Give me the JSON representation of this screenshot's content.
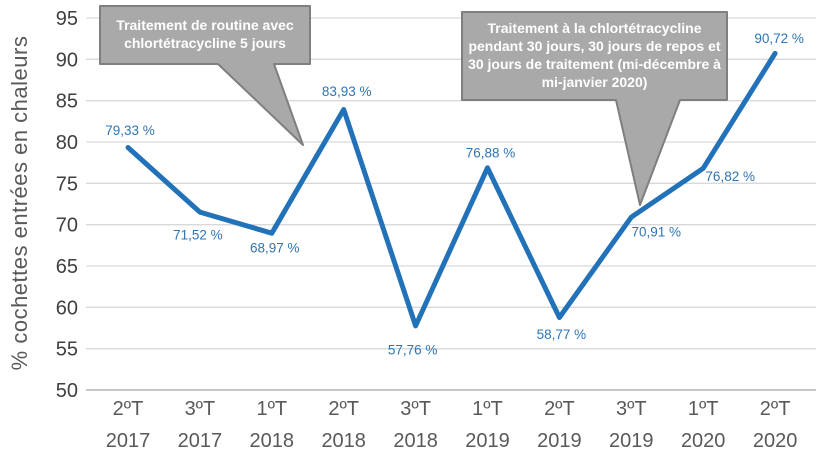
{
  "chart_data": {
    "type": "line",
    "title": "",
    "xlabel": "",
    "ylabel": "% cochettes entrées en chaleurs",
    "ylim": [
      50,
      95
    ],
    "yticks": [
      50,
      55,
      60,
      65,
      70,
      75,
      80,
      85,
      90,
      95
    ],
    "grid": true,
    "legend": "none",
    "categories": [
      {
        "quarter": "2ºT",
        "year": "2017"
      },
      {
        "quarter": "3ºT",
        "year": "2017"
      },
      {
        "quarter": "1ºT",
        "year": "2018"
      },
      {
        "quarter": "2ºT",
        "year": "2018"
      },
      {
        "quarter": "3ºT",
        "year": "2018"
      },
      {
        "quarter": "1ºT",
        "year": "2019"
      },
      {
        "quarter": "2ºT",
        "year": "2019"
      },
      {
        "quarter": "3ºT",
        "year": "2019"
      },
      {
        "quarter": "1ºT",
        "year": "2020"
      },
      {
        "quarter": "2ºT",
        "year": "2020"
      }
    ],
    "series": [
      {
        "name": "% cochettes entrées en chaleurs",
        "values": [
          79.33,
          71.52,
          68.97,
          83.93,
          57.76,
          76.88,
          58.77,
          70.91,
          76.82,
          90.72
        ],
        "point_labels": [
          "79,33 %",
          "71,52 %",
          "68,97 %",
          "83,93 %",
          "57,76 %",
          "76,88 %",
          "58,77 %",
          "70,91 %",
          "76,82 %",
          "90,72 %"
        ]
      }
    ],
    "annotations": [
      {
        "text": "Traitement de routine avec chlortétracycline 5 jours",
        "points_to": "entre 1ºT 2018 et 2ºT 2018"
      },
      {
        "text": "Traitement à la chlortétracycline pendant 30 jours, 30 jours de repos et 30 jours de traitement (mi-décembre à mi-janvier 2020)",
        "points_to": "3ºT 2019"
      }
    ]
  },
  "colors": {
    "line": "#2272B9",
    "data_label": "#2E75B6",
    "ytick_text": "#404040",
    "xtick_text": "#595959",
    "axis_title_text": "#595959",
    "gridline": "#D9D9D9",
    "axis_line": "#BFBFBF",
    "callout_fill": "#A9A9A9",
    "callout_border": "#7F7F7F",
    "callout_text": "#FFFFFF"
  }
}
